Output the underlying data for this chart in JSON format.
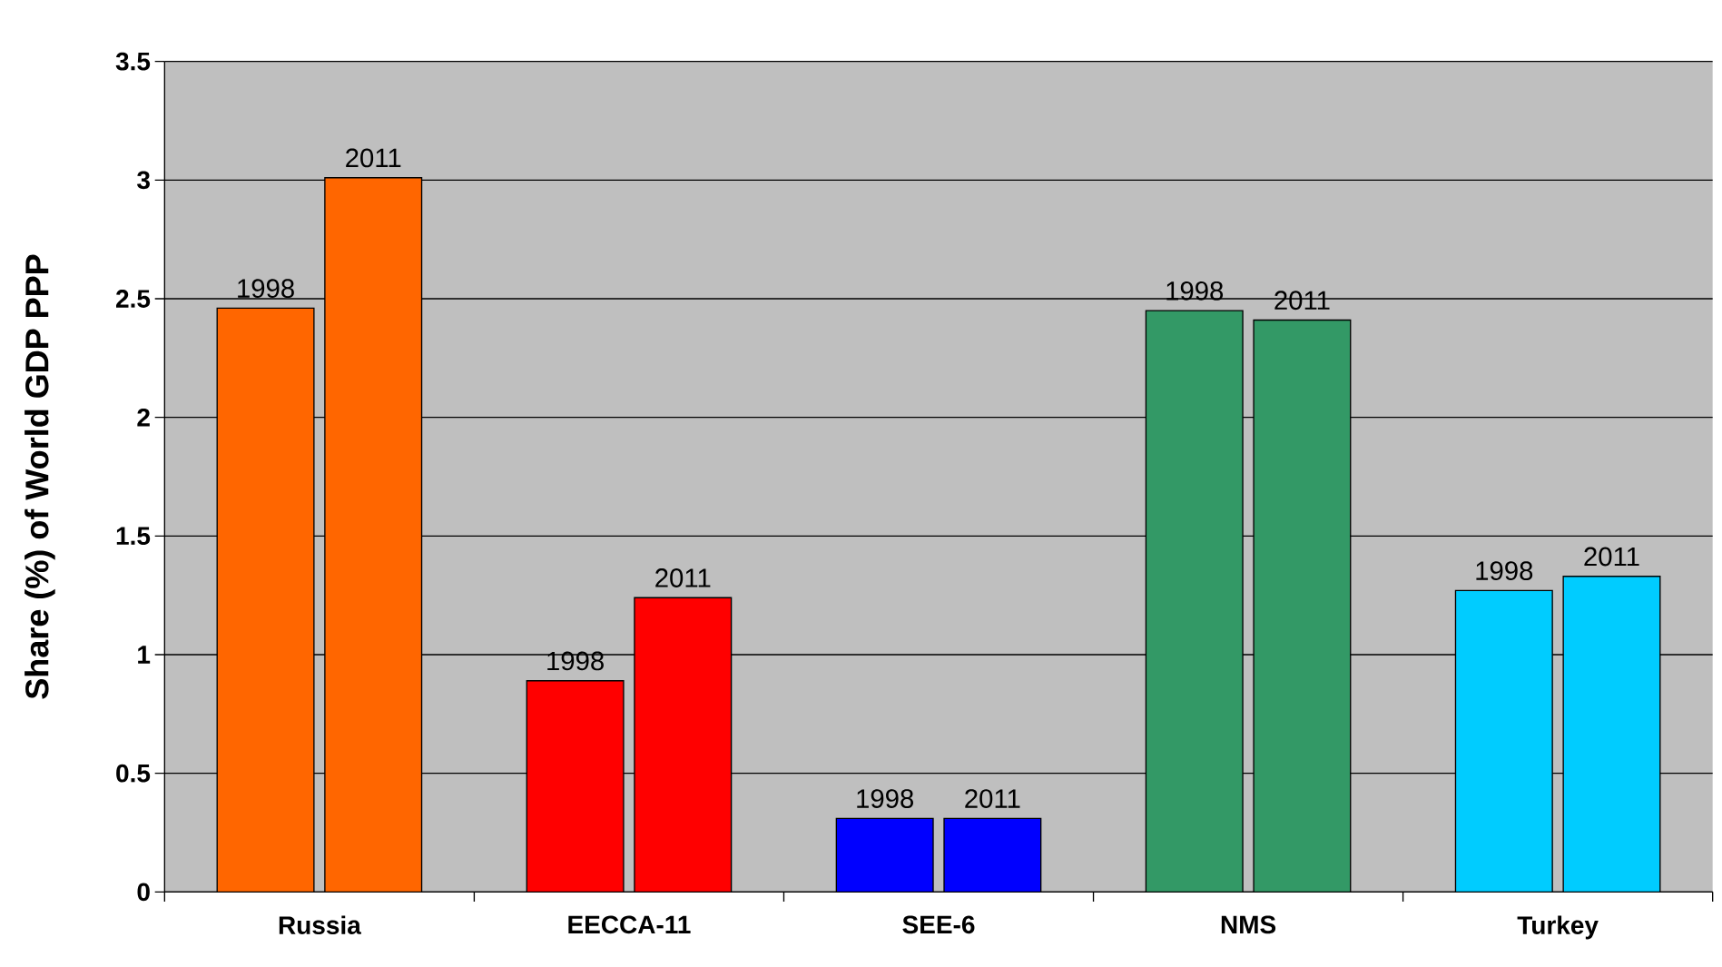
{
  "chart_data": {
    "type": "bar",
    "ylabel": "Share (%) of World GDP PPP",
    "categories": [
      "Russia",
      "EECCA-11",
      "SEE-6",
      "NMS",
      "Turkey"
    ],
    "series": [
      {
        "name": "1998",
        "colors": [
          "#ff6600",
          "#ff0000",
          "#0000ff",
          "#339966",
          "#00ccff"
        ],
        "values": [
          2.46,
          0.89,
          0.31,
          2.45,
          1.27
        ]
      },
      {
        "name": "2011",
        "colors": [
          "#ff6600",
          "#ff0000",
          "#0000ff",
          "#339966",
          "#00ccff"
        ],
        "values": [
          3.01,
          1.24,
          0.31,
          2.41,
          1.33
        ]
      }
    ],
    "ylim": [
      0,
      3.5
    ],
    "yticks": [
      0,
      0.5,
      1,
      1.5,
      2,
      2.5,
      3,
      3.5
    ],
    "grid": "y"
  }
}
